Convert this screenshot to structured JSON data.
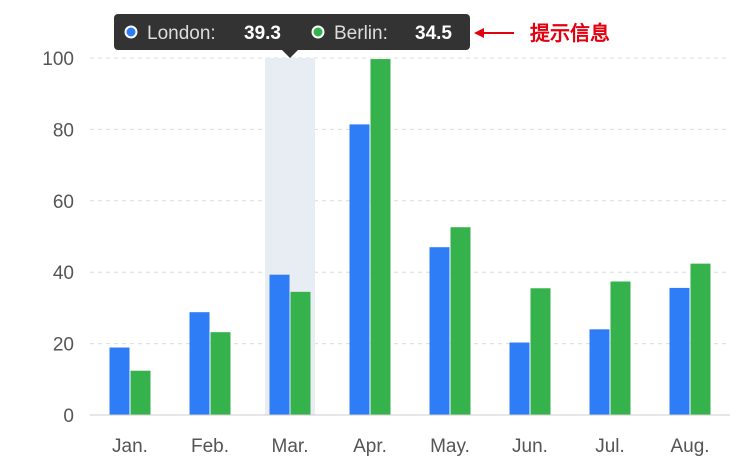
{
  "chart_data": {
    "type": "bar",
    "categories": [
      "Jan.",
      "Feb.",
      "Mar.",
      "Apr.",
      "May.",
      "Jun.",
      "Jul.",
      "Aug."
    ],
    "series": [
      {
        "name": "London",
        "color": "#2e7cf6",
        "values": [
          18.9,
          28.8,
          39.3,
          81.4,
          47,
          20.3,
          24,
          35.6
        ]
      },
      {
        "name": "Berlin",
        "color": "#36b24d",
        "values": [
          12.4,
          23.2,
          34.5,
          99.7,
          52.6,
          35.5,
          37.4,
          42.4
        ]
      }
    ],
    "ylim": [
      0,
      100
    ],
    "yticks": [
      0,
      20,
      40,
      60,
      80,
      100
    ],
    "grid": true,
    "highlighted_category": "Mar."
  },
  "tooltip": {
    "london_label": "London:",
    "london_value": "39.3",
    "berlin_label": "Berlin:",
    "berlin_value": "34.5",
    "background": "#333333"
  },
  "annotation": {
    "text": "提示信息",
    "color": "#e3000f"
  }
}
